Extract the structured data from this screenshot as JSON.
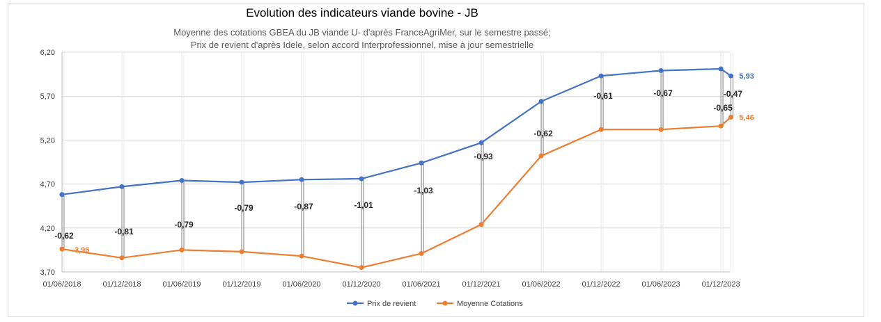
{
  "chart_data": {
    "type": "line",
    "title": "Evolution des indicateurs viande bovine - JB",
    "subtitle_line1": "Moyenne des cotations GBEA du JB viande U- d'après FranceAgriMer, sur le semestre passé;",
    "subtitle_line2": "Prix de revient d'après Idele, selon accord Interprofessionnel, mise à jour semestrielle",
    "x_tick_labels": [
      "01/06/2018",
      "01/12/2018",
      "01/06/2019",
      "01/12/2019",
      "01/06/2020",
      "01/12/2020",
      "01/06/2021",
      "01/12/2021",
      "01/06/2022",
      "01/12/2022",
      "01/06/2023",
      "01/12/2023"
    ],
    "x": [
      0,
      6,
      12,
      18,
      24,
      30,
      36,
      42,
      48,
      54,
      60,
      66,
      67
    ],
    "xlim": [
      0,
      66.9
    ],
    "ylim": [
      3.7,
      6.2
    ],
    "y_ticks": [
      3.7,
      4.2,
      4.7,
      5.2,
      5.7,
      6.2
    ],
    "y_tick_labels": [
      "3,70",
      "4,20",
      "4,70",
      "5,20",
      "5,70",
      "6,20"
    ],
    "grid": true,
    "legend_position": "bottom",
    "series": [
      {
        "name": "Prix de revient",
        "color": "#4472c4",
        "values": [
          4.58,
          4.67,
          4.74,
          4.72,
          4.75,
          4.76,
          4.94,
          5.17,
          5.64,
          5.93,
          5.99,
          6.01,
          5.93
        ]
      },
      {
        "name": "Moyenne Cotations",
        "color": "#ed7d31",
        "values": [
          3.96,
          3.86,
          3.95,
          3.93,
          3.88,
          3.75,
          3.91,
          4.24,
          5.02,
          5.32,
          5.32,
          5.36,
          5.46
        ]
      }
    ],
    "difference_labels": [
      "-0,62",
      "-0,81",
      "-0,79",
      "-0,79",
      "-0,87",
      "-1,01",
      "-1,03",
      "-0,93",
      "-0,62",
      "-0,61",
      "-0,67",
      "-0,65",
      "-0,47"
    ],
    "end_labels": {
      "prix": "5,93",
      "cotations_first": "3,96",
      "cotations_last": "5,46"
    }
  }
}
